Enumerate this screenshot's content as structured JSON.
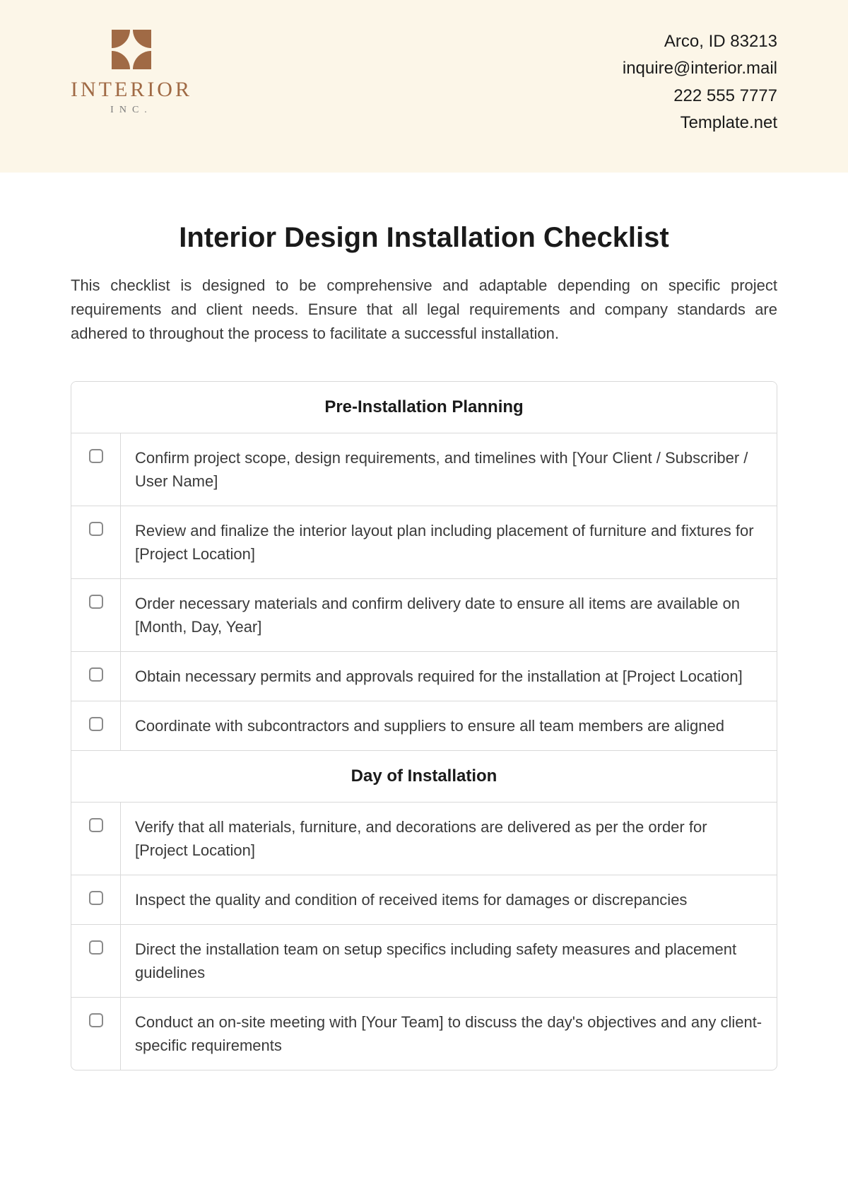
{
  "header": {
    "logo": {
      "main": "INTERIOR",
      "sub": "INC.",
      "mark_color": "#a06a45"
    },
    "contact": {
      "address": "Arco, ID 83213",
      "email": "inquire@interior.mail",
      "phone": "222 555 7777",
      "site": "Template.net"
    },
    "background_color": "#fcf6e8"
  },
  "document": {
    "title": "Interior Design Installation Checklist",
    "intro": "This checklist is designed to be comprehensive and adaptable depending on specific project requirements and client needs. Ensure that all legal requirements and company standards are adhered to throughout the process to facilitate a successful installation."
  },
  "sections": [
    {
      "heading": "Pre-Installation Planning",
      "items": [
        "Confirm project scope, design requirements, and timelines with [Your Client / Subscriber / User Name]",
        "Review and finalize the interior layout plan including placement of furniture and fixtures for [Project Location]",
        "Order necessary materials and confirm delivery date to ensure all items are available on [Month, Day, Year]",
        "Obtain necessary permits and approvals required for the installation at [Project Location]",
        "Coordinate with subcontractors and suppliers to ensure all team members are aligned"
      ]
    },
    {
      "heading": "Day of Installation",
      "items": [
        "Verify that all materials, furniture, and decorations are delivered as per the order for [Project Location]",
        "Inspect the quality and condition of received items for damages or discrepancies",
        "Direct the installation team on setup specifics including safety measures and placement guidelines",
        "Conduct an on-site meeting with [Your Team] to discuss the day's objectives and any client-specific requirements"
      ]
    }
  ],
  "styling": {
    "title_fontsize": 40,
    "body_fontsize": 22,
    "section_heading_fontsize": 24,
    "text_color": "#1a1a1a",
    "body_text_color": "#3a3a3a",
    "border_color": "#d9d9d9",
    "checkbox_border_color": "#8a8a8a",
    "page_background": "#ffffff"
  }
}
